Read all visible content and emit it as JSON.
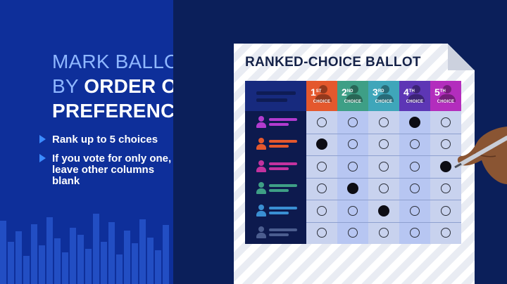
{
  "headline": {
    "l1_light": "MARK BALLOT",
    "l2_light": "BY ",
    "l2_bold": "ORDER OF",
    "l3_bold": "PREFERENCE"
  },
  "bullets": [
    {
      "text": "Rank up to 5 choices"
    },
    {
      "text": "If you vote for only one, leave other columns blank"
    }
  ],
  "ballot": {
    "title": "RANKED-CHOICE BALLOT",
    "choices": [
      {
        "num": "1",
        "suffix": "ST",
        "label": "CHOICE",
        "head_color": "#e4582d",
        "col_color": "#c8d2ee"
      },
      {
        "num": "2",
        "suffix": "ND",
        "label": "CHOICE",
        "head_color": "#3e9f86",
        "col_color": "#b7c6f2"
      },
      {
        "num": "3",
        "suffix": "RD",
        "label": "CHOICE",
        "head_color": "#3fa6ba",
        "col_color": "#c8d2ee"
      },
      {
        "num": "4",
        "suffix": "TH",
        "label": "CHOICE",
        "head_color": "#5d36b5",
        "col_color": "#b7c6f2"
      },
      {
        "num": "5",
        "suffix": "TH",
        "label": "CHOICE",
        "head_color": "#b32dbd",
        "col_color": "#c8d2ee"
      }
    ],
    "candidates": [
      {
        "color": "#b23bcf",
        "marked_choice": 4
      },
      {
        "color": "#e4582d",
        "marked_choice": 1
      },
      {
        "color": "#c3329f",
        "marked_choice": 5
      },
      {
        "color": "#3e9f86",
        "marked_choice": 2
      },
      {
        "color": "#3a8fd3",
        "marked_choice": 3
      },
      {
        "color": "#4b5d8f",
        "marked_choice": null
      }
    ]
  }
}
